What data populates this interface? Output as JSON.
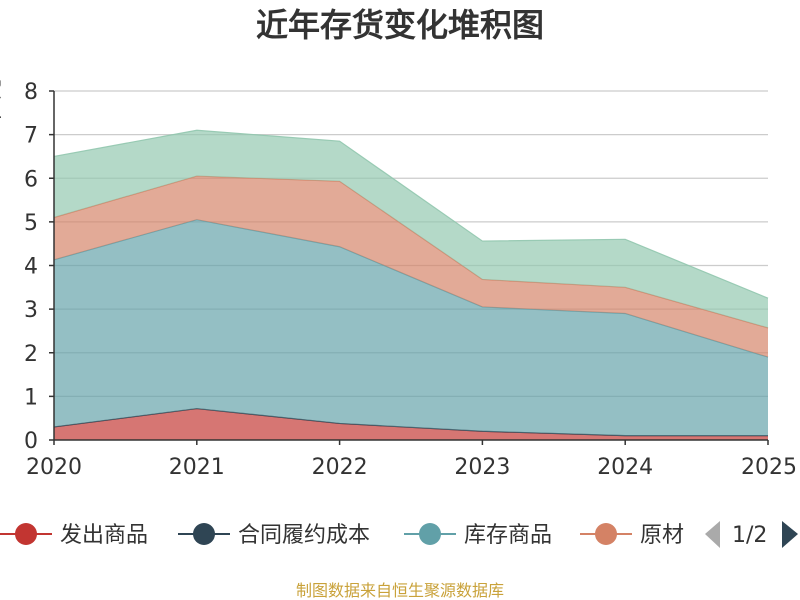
{
  "chart_data": {
    "type": "area",
    "stacked": true,
    "title": "近年存货变化堆积图",
    "ylabel": "亿元",
    "x": [
      "2020",
      "2021",
      "2022",
      "2023",
      "2024",
      "2025"
    ],
    "ylim": [
      0,
      8
    ],
    "yticks": [
      0,
      1,
      2,
      3,
      4,
      5,
      6,
      7,
      8
    ],
    "grid": true,
    "series": [
      {
        "name": "发出商品",
        "color": "#c23531",
        "values": [
          0.3,
          0.72,
          0.38,
          0.2,
          0.1,
          0.1
        ]
      },
      {
        "name": "合同履约成本",
        "color": "#2f4554",
        "values": [
          0.0,
          0.0,
          0.0,
          0.0,
          0.0,
          0.0
        ]
      },
      {
        "name": "库存商品",
        "color": "#61a0a8",
        "values": [
          3.83,
          4.33,
          4.05,
          2.85,
          2.8,
          1.8
        ]
      },
      {
        "name": "原材料",
        "color": "#d48265",
        "values": [
          0.97,
          1.0,
          1.5,
          0.63,
          0.6,
          0.67
        ]
      },
      {
        "name": "",
        "color": "#91c7ae",
        "values": [
          1.4,
          1.05,
          0.92,
          0.88,
          1.1,
          0.68
        ]
      }
    ],
    "legend": {
      "position": "bottom",
      "visible_items": [
        "发出商品",
        "合同履约成本",
        "库存商品",
        "原材"
      ],
      "page_indicator": "1/2"
    }
  },
  "source": "制图数据来自恒生聚源数据库"
}
